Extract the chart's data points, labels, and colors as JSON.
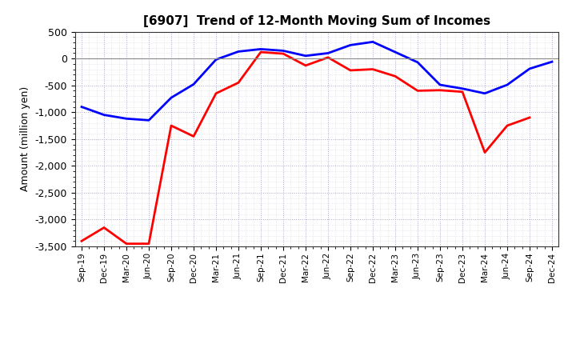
{
  "title": "[6907]  Trend of 12-Month Moving Sum of Incomes",
  "ylabel": "Amount (million yen)",
  "background_color": "#ffffff",
  "plot_bg_color": "#ffffff",
  "grid_color": "#aaaacc",
  "x_labels": [
    "Sep-19",
    "Dec-19",
    "Mar-20",
    "Jun-20",
    "Sep-20",
    "Dec-20",
    "Mar-21",
    "Jun-21",
    "Sep-21",
    "Dec-21",
    "Mar-22",
    "Jun-22",
    "Sep-22",
    "Dec-22",
    "Mar-23",
    "Jun-23",
    "Sep-23",
    "Dec-23",
    "Mar-24",
    "Jun-24",
    "Sep-24",
    "Dec-24"
  ],
  "ordinary_income": [
    -900,
    -1050,
    -1120,
    -1150,
    -730,
    -480,
    -20,
    130,
    175,
    145,
    50,
    100,
    250,
    310,
    120,
    -70,
    -490,
    -560,
    -650,
    -490,
    -190,
    -60
  ],
  "net_income": [
    -3400,
    -3150,
    -3450,
    -3450,
    -1250,
    -1450,
    -650,
    -450,
    120,
    90,
    -130,
    20,
    -220,
    -200,
    -330,
    -600,
    -590,
    -620,
    -1750,
    -1250,
    -1100,
    null
  ],
  "ylim_min": -3500,
  "ylim_max": 500,
  "ordinary_color": "#0000ff",
  "net_color": "#ff0000",
  "line_width": 2.0,
  "ytick_interval": 500
}
